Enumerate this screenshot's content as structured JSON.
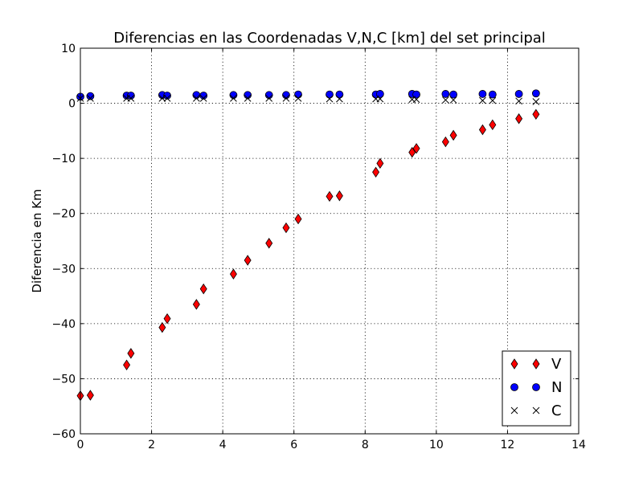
{
  "chart_data": {
    "type": "scatter",
    "title": "Diferencias en las Coordenadas V,N,C [km] del set principal",
    "xlabel": "",
    "ylabel": "Diferencia en Km",
    "xlim": [
      0,
      14
    ],
    "ylim": [
      -60,
      10
    ],
    "x_ticks": [
      0,
      2,
      4,
      6,
      8,
      10,
      12,
      14
    ],
    "y_ticks": [
      -60,
      -50,
      -40,
      -30,
      -20,
      -10,
      0,
      10
    ],
    "x_tick_labels": [
      "0",
      "2",
      "4",
      "6",
      "8",
      "10",
      "12",
      "14"
    ],
    "y_tick_labels": [
      "−60",
      "−50",
      "−40",
      "−30",
      "−20",
      "−10",
      "0",
      "10"
    ],
    "grid": true,
    "legend_position": "bottom-right",
    "series": [
      {
        "name": "V",
        "marker": "diamond",
        "color": "#ff0000",
        "x": [
          0.0,
          0.28,
          1.3,
          1.42,
          2.3,
          2.44,
          3.26,
          3.46,
          4.3,
          4.7,
          5.3,
          5.78,
          6.12,
          7.0,
          7.28,
          8.3,
          8.42,
          9.32,
          9.44,
          10.26,
          10.48,
          11.3,
          11.58,
          12.32,
          12.8
        ],
        "y": [
          -53.1,
          -53.0,
          -47.5,
          -45.4,
          -40.7,
          -39.1,
          -36.5,
          -33.7,
          -31.0,
          -28.5,
          -25.4,
          -22.6,
          -21.0,
          -16.9,
          -16.8,
          -12.5,
          -10.9,
          -8.9,
          -8.2,
          -7.0,
          -5.8,
          -4.8,
          -3.9,
          -2.8,
          -2.0
        ]
      },
      {
        "name": "N",
        "marker": "circle",
        "color": "#0000ff",
        "x": [
          0.0,
          0.28,
          1.3,
          1.42,
          2.3,
          2.44,
          3.26,
          3.46,
          4.3,
          4.7,
          5.3,
          5.78,
          6.12,
          7.0,
          7.28,
          8.3,
          8.42,
          9.32,
          9.44,
          10.26,
          10.48,
          11.3,
          11.58,
          12.32,
          12.8
        ],
        "y": [
          1.2,
          1.3,
          1.4,
          1.4,
          1.5,
          1.4,
          1.5,
          1.4,
          1.5,
          1.5,
          1.5,
          1.5,
          1.6,
          1.6,
          1.6,
          1.6,
          1.7,
          1.7,
          1.6,
          1.7,
          1.6,
          1.7,
          1.6,
          1.7,
          1.8
        ]
      },
      {
        "name": "C",
        "marker": "x",
        "color": "#000000",
        "x": [
          0.0,
          0.28,
          1.3,
          1.42,
          2.3,
          2.44,
          3.26,
          3.46,
          4.3,
          4.7,
          5.3,
          5.78,
          6.12,
          7.0,
          7.28,
          8.3,
          8.42,
          9.32,
          9.44,
          10.26,
          10.48,
          11.3,
          11.58,
          12.32,
          12.8
        ],
        "y": [
          0.9,
          0.9,
          0.9,
          0.9,
          0.9,
          0.9,
          0.9,
          0.9,
          0.9,
          0.9,
          0.9,
          0.9,
          0.9,
          0.8,
          0.8,
          0.8,
          0.8,
          0.7,
          0.7,
          0.6,
          0.6,
          0.5,
          0.5,
          0.4,
          0.3
        ]
      }
    ]
  }
}
